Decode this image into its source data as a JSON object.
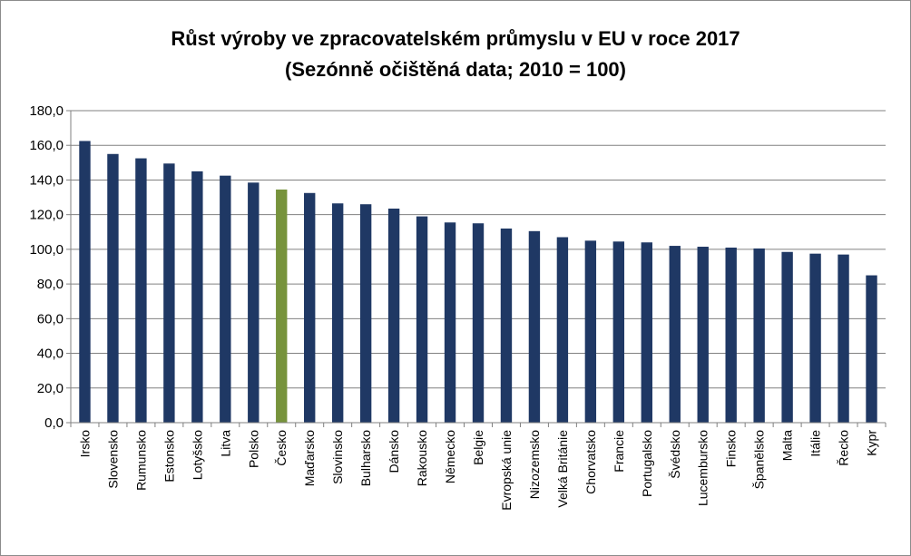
{
  "chart_data": {
    "type": "bar",
    "title": "Růst výroby ve zpracovatelském průmyslu v EU v roce 2017",
    "subtitle": "(Sezónně očištěná data; 2010 = 100)",
    "xlabel": "",
    "ylabel": "",
    "ylim": [
      0,
      180
    ],
    "ytick_step": 20,
    "ytick_labels": [
      "0,0",
      "20,0",
      "40,0",
      "60,0",
      "80,0",
      "100,0",
      "120,0",
      "140,0",
      "160,0",
      "180,0"
    ],
    "grid": true,
    "legend": "none",
    "colors": {
      "bar": "#1f3864",
      "highlight": "#77933c",
      "grid": "#808080",
      "axis": "#808080"
    },
    "highlight_category": "Česko",
    "categories": [
      "Irsko",
      "Slovensko",
      "Rumunsko",
      "Estonsko",
      "Lotyšsko",
      "Litva",
      "Polsko",
      "Česko",
      "Maďarsko",
      "Slovinsko",
      "Bulharsko",
      "Dánsko",
      "Rakousko",
      "Německo",
      "Belgie",
      "Evropská unie",
      "Nizozemsko",
      "Velká Británie",
      "Chorvatsko",
      "Francie",
      "Portugalsko",
      "Švédsko",
      "Lucembursko",
      "Finsko",
      "Španělsko",
      "Malta",
      "Itálie",
      "Řecko",
      "Kypr"
    ],
    "values": [
      162.5,
      155.0,
      152.5,
      149.5,
      145.0,
      142.5,
      138.5,
      134.5,
      132.5,
      126.5,
      126.0,
      123.5,
      119.0,
      115.5,
      115.0,
      112.0,
      110.5,
      107.0,
      105.0,
      104.5,
      104.0,
      102.0,
      101.5,
      101.0,
      100.5,
      98.5,
      97.5,
      97.0,
      85.0
    ]
  }
}
